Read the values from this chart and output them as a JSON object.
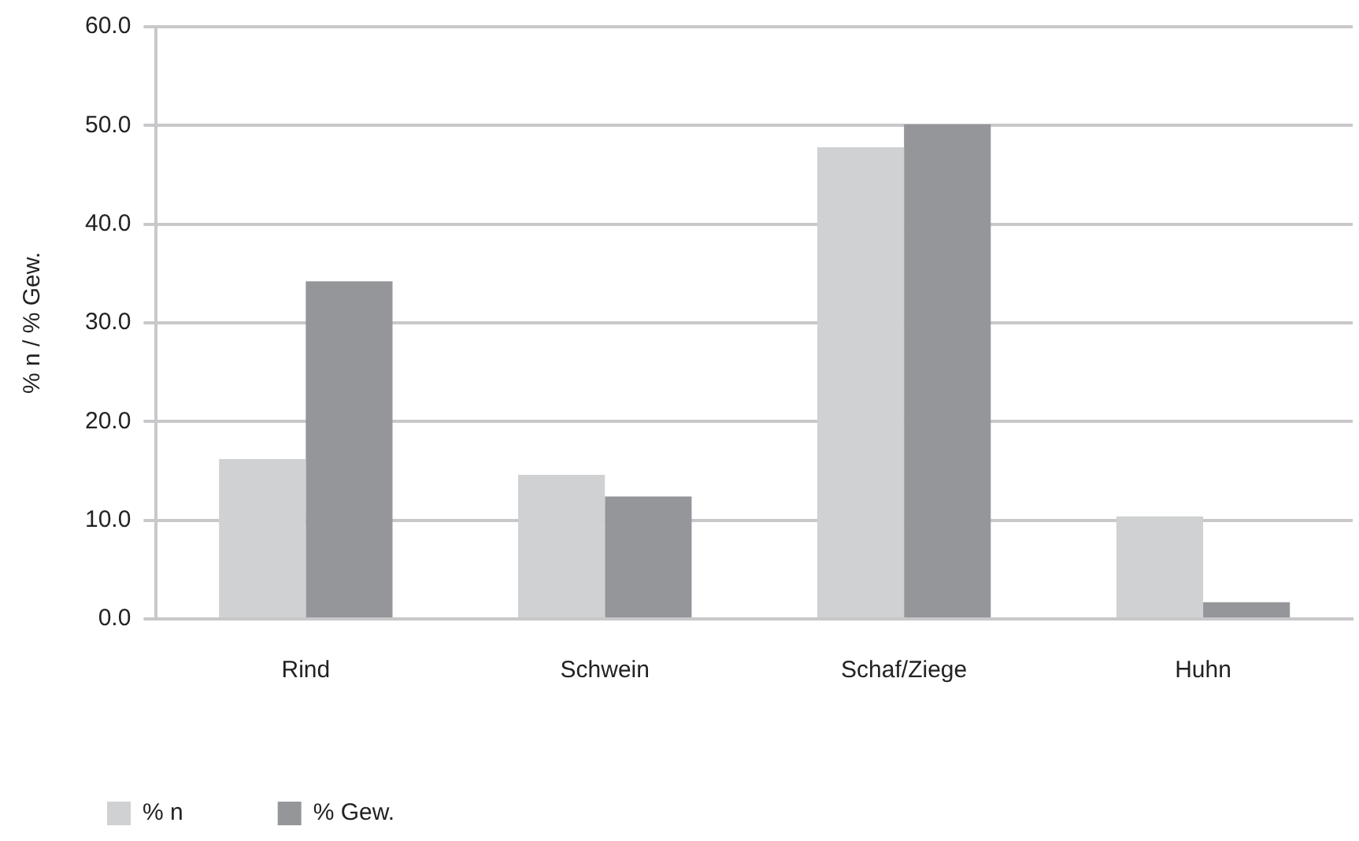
{
  "chart_data": {
    "type": "bar",
    "ylabel": "% n / % Gew.",
    "categories": [
      "Rind",
      "Schwein",
      "Schaf/Ziege",
      "Huhn"
    ],
    "series": [
      {
        "name": "% n",
        "color": "#d0d1d3",
        "values": [
          16.2,
          14.6,
          47.8,
          10.4
        ]
      },
      {
        "name": "% Gew.",
        "color": "#959699",
        "values": [
          34.2,
          12.4,
          50.1,
          1.7
        ]
      }
    ],
    "ylim": [
      0,
      60
    ],
    "yticks": [
      {
        "value": 0,
        "label": "0.0"
      },
      {
        "value": 10,
        "label": "10.0"
      },
      {
        "value": 20,
        "label": "20.0"
      },
      {
        "value": 30,
        "label": "30.0"
      },
      {
        "value": 40,
        "label": "40.0"
      },
      {
        "value": 50,
        "label": "50.0"
      },
      {
        "value": 60,
        "label": "60.0"
      }
    ],
    "grid": "y",
    "legend": "bottom left"
  }
}
